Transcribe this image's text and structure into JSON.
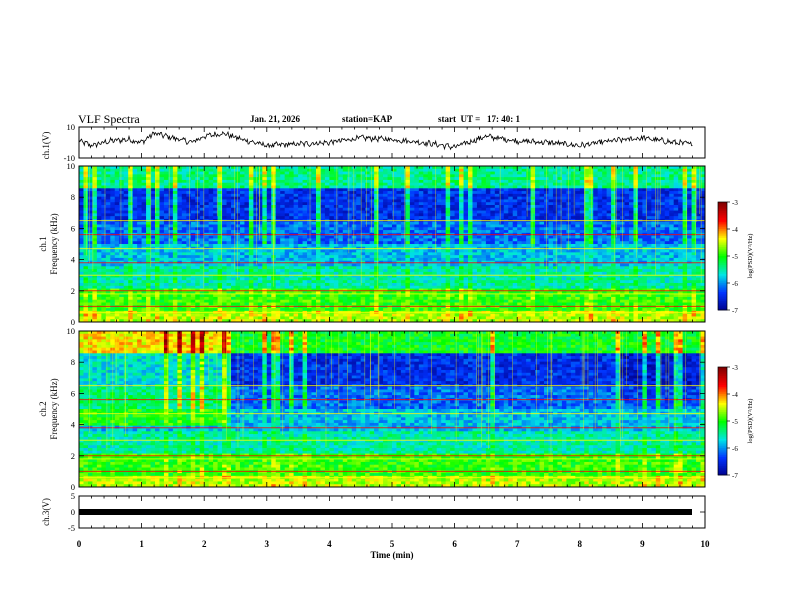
{
  "header": {
    "title": "VLF Spectra",
    "date": "Jan. 21, 2026",
    "station": "station=KAP",
    "start_ut": "start  UT =   17: 40: 1"
  },
  "colors": {
    "dark_blue": "#00008b",
    "blue": "#0033ff",
    "cyan": "#00e5e5",
    "green": "#00ff00",
    "yellow": "#ffff00",
    "red": "#ff0000",
    "dark_red": "#800000",
    "axis": "#000000"
  },
  "chart_data": [
    {
      "type": "line",
      "panel": "ch1_waveform",
      "ylabel": "ch.1(V)",
      "ylim": [
        -10,
        10
      ],
      "yticks": [
        "10",
        "-10"
      ],
      "x_range_min": [
        0,
        9.8
      ],
      "series_description_points": {
        "x": [
          0,
          0.2,
          0.5,
          0.8,
          1.0,
          1.2,
          1.5,
          1.8,
          2.0,
          2.3,
          2.6,
          3.0,
          3.5,
          4.0,
          4.5,
          5.0,
          5.5,
          6.0,
          6.5,
          7.0,
          7.5,
          8.0,
          8.5,
          9.0,
          9.5,
          9.8
        ],
        "y": [
          1,
          -2,
          1,
          2,
          0,
          6,
          3,
          0,
          4,
          6,
          2,
          -2,
          -1,
          0,
          3,
          2,
          0,
          -3,
          4,
          1,
          0,
          -2,
          1,
          3,
          0,
          -1
        ]
      }
    },
    {
      "type": "heatmap",
      "panel": "ch1_spectrogram",
      "ylabel": "Frequency (kHz)",
      "channel_label": "ch.1",
      "ylim": [
        0,
        10
      ],
      "yticks": [
        "0",
        "2",
        "4",
        "6",
        "8",
        "10"
      ],
      "colorbar": {
        "label": "log(PSD)(V²/Hz)",
        "range": [
          -7,
          -3
        ],
        "ticks": [
          "-3",
          "-4",
          "-5",
          "-6",
          "-7"
        ]
      }
    },
    {
      "type": "heatmap",
      "panel": "ch2_spectrogram",
      "ylabel": "Frequency (kHz)",
      "channel_label": "ch.2",
      "ylim": [
        0,
        10
      ],
      "yticks": [
        "0",
        "2",
        "4",
        "6",
        "8",
        "10"
      ],
      "colorbar": {
        "label": "log(PSD)(V²/Hz)",
        "range": [
          -7,
          -3
        ],
        "ticks": [
          "-3",
          "-4",
          "-5",
          "-6",
          "-7"
        ]
      }
    },
    {
      "type": "line",
      "panel": "ch3_waveform",
      "ylabel": "ch.3(V)",
      "ylim": [
        -5,
        5
      ],
      "yticks": [
        "5",
        "0",
        "-5"
      ],
      "constant_value": 0
    }
  ],
  "x_axis": {
    "label": "Time  (min)",
    "range": [
      0,
      10
    ],
    "ticks": [
      "0",
      "1",
      "2",
      "3",
      "4",
      "5",
      "6",
      "7",
      "8",
      "9",
      "10"
    ]
  }
}
